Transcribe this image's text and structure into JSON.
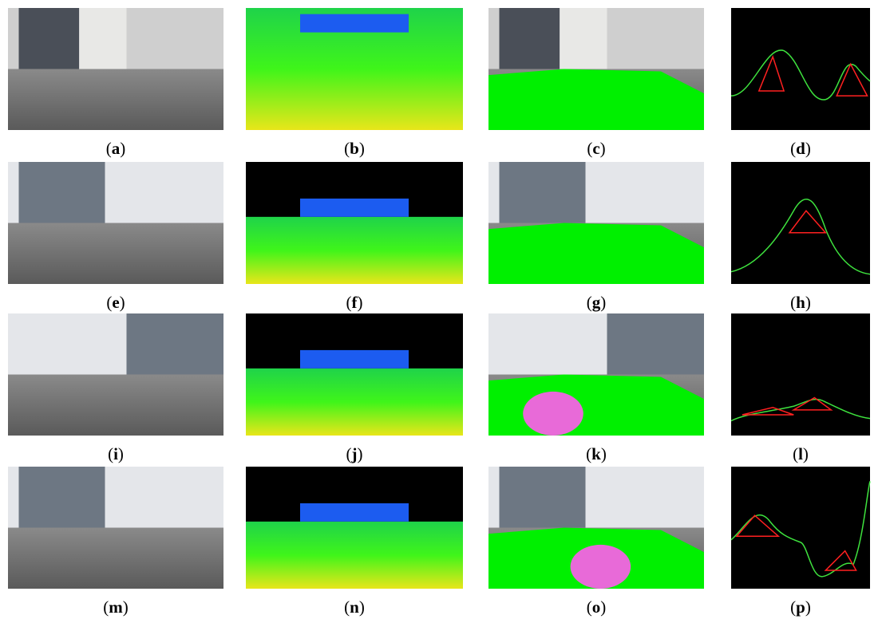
{
  "panels": [
    {
      "label": [
        "(",
        "a",
        ")"
      ]
    },
    {
      "label": [
        "(",
        "b",
        ")"
      ]
    },
    {
      "label": [
        "(",
        "c",
        ")"
      ]
    },
    {
      "label": [
        "(",
        "d",
        ")"
      ]
    },
    {
      "label": [
        "(",
        "e",
        ")"
      ]
    },
    {
      "label": [
        "(",
        "f",
        ")"
      ]
    },
    {
      "label": [
        "(",
        "g",
        ")"
      ]
    },
    {
      "label": [
        "(",
        "h",
        ")"
      ]
    },
    {
      "label": [
        "(",
        "i",
        ")"
      ]
    },
    {
      "label": [
        "(",
        "j",
        ")"
      ]
    },
    {
      "label": [
        "(",
        "k",
        ")"
      ]
    },
    {
      "label": [
        "(",
        "l",
        ")"
      ]
    },
    {
      "label": [
        "(",
        "m",
        ")"
      ]
    },
    {
      "label": [
        "(",
        "n",
        ")"
      ]
    },
    {
      "label": [
        "(",
        "o",
        ")"
      ]
    },
    {
      "label": [
        "(",
        "p",
        ")"
      ]
    }
  ]
}
